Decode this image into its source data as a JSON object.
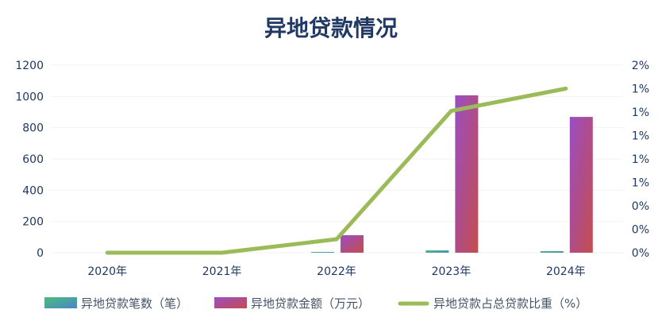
{
  "chart_data": {
    "type": "bar",
    "title": "异地贷款情况",
    "categories": [
      "2020年",
      "2021年",
      "2022年",
      "2023年",
      "2024年"
    ],
    "series": [
      {
        "name": "异地贷款笔数（笔）",
        "type": "bar",
        "axis": "left",
        "values": [
          0,
          0,
          5,
          15,
          10
        ],
        "colors": [
          "#4cbb7c",
          "#4a86c8"
        ]
      },
      {
        "name": "异地贷款金额（万元）",
        "type": "bar",
        "axis": "left",
        "values": [
          0,
          0,
          112,
          1007,
          869
        ],
        "colors": [
          "#9b4dc4",
          "#c44d4d"
        ]
      },
      {
        "name": "异地贷款占总贷款比重（%）",
        "type": "line",
        "axis": "right",
        "values": [
          0,
          0,
          0.115,
          1.21,
          1.4
        ],
        "color": "#9bbb59"
      }
    ],
    "ylim_left": [
      0,
      1200
    ],
    "yticks_left": [
      "0",
      "200",
      "400",
      "600",
      "800",
      "1000",
      "1200"
    ],
    "ylim_right": [
      0,
      1.6
    ],
    "yticks_right": [
      "0%",
      "0%",
      "0%",
      "1%",
      "1%",
      "1%",
      "1%",
      "1%",
      "2%"
    ],
    "grid": true,
    "legend": "bottom"
  }
}
